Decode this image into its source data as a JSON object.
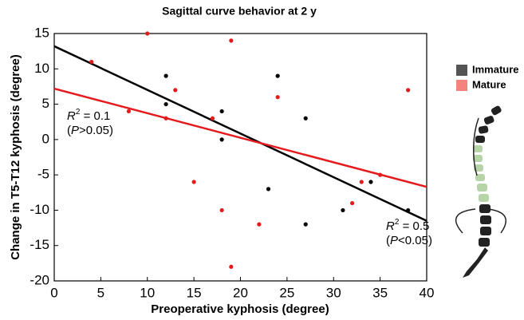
{
  "chart_data": {
    "type": "scatter",
    "title": "Sagittal curve behavior at 2 y",
    "x_label": "Preoperative kyphosis (degree)",
    "y_label": "Change in T5-T12 kyphosis (degree)",
    "xlim": [
      0,
      40
    ],
    "xticks": [
      0,
      5,
      10,
      15,
      20,
      25,
      30,
      35,
      40
    ],
    "ylim": [
      -20,
      15
    ],
    "yticks": [
      -20,
      -15,
      -10,
      -5,
      0,
      5,
      10,
      15
    ],
    "series": [
      {
        "name": "Immature",
        "color": "#000000",
        "legend_color": "#555555",
        "x": [
          12,
          12,
          18,
          18,
          24,
          27,
          23,
          27,
          31,
          34,
          38
        ],
        "values": [
          9,
          5,
          4,
          0,
          9,
          3,
          -7,
          -12,
          -10,
          -6,
          -10
        ],
        "fit": {
          "x": [
            0,
            40
          ],
          "values": [
            13.2,
            -11.5
          ]
        }
      },
      {
        "name": "Mature",
        "color": "#e41a1c",
        "legend_color": "#f4837d",
        "x": [
          4,
          10,
          13,
          8,
          12,
          17,
          19,
          24,
          15,
          18,
          22,
          19,
          32,
          33,
          35,
          38
        ],
        "values": [
          11,
          15,
          7,
          4,
          3,
          3,
          14,
          6,
          -6,
          -10,
          -12,
          -18,
          -9,
          -6,
          -5,
          7
        ],
        "fit": {
          "x": [
            0,
            40
          ],
          "values": [
            7.2,
            -6.7
          ]
        }
      }
    ],
    "annotations": [
      {
        "r": "R",
        "sup": "2",
        "rest": " = 0.1",
        "open": "(",
        "p": "P",
        "p_rest": ">0.05)"
      },
      {
        "r": "R",
        "sup": "2",
        "rest": " = 0.5",
        "open": "(",
        "p": "P",
        "p_rest": "<0.05)"
      }
    ]
  }
}
